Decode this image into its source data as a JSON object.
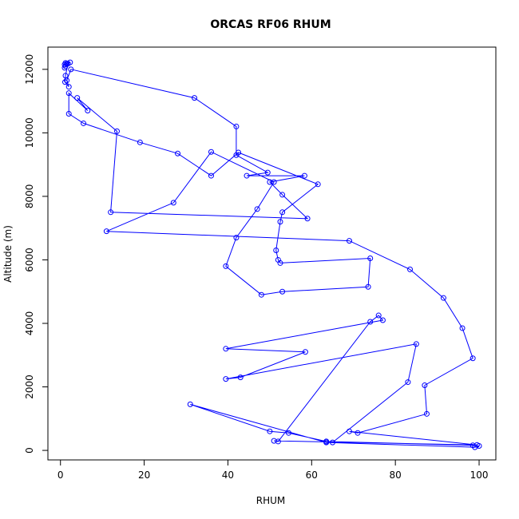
{
  "chart_data": {
    "type": "line",
    "title": "ORCAS RF06 RHUM",
    "xlabel": "RHUM",
    "ylabel": "Altitude (m)",
    "xlim": [
      -3,
      104
    ],
    "ylim": [
      -300,
      12700
    ],
    "xticks": [
      0,
      20,
      40,
      60,
      80,
      100
    ],
    "yticks": [
      0,
      2000,
      4000,
      6000,
      8000,
      10000,
      12000
    ],
    "grid": false,
    "markers": "open-circle",
    "colors": {
      "series": "#0000ff",
      "axis": "#000000"
    },
    "series": [
      {
        "x": [
          1.0,
          1.2,
          1.0,
          1.5,
          1.2,
          2.3,
          1.8,
          1.2,
          1.1,
          2.0,
          1.5,
          2.5,
          32.0,
          42.0,
          42.0,
          49.5,
          44.5,
          58.3,
          50.0,
          53.0,
          59.0,
          12.0,
          13.5,
          4.0,
          6.5,
          2.0,
          2.0,
          5.5,
          19.0,
          28.0,
          36.0,
          42.5,
          61.5,
          53.0,
          52.5,
          51.5,
          52.0,
          52.5,
          74.0,
          73.5,
          53.0,
          48.0,
          39.5,
          42.0,
          47.0,
          51.0,
          36.0,
          27.0,
          11.0,
          69.0,
          83.5,
          91.5,
          96.0,
          98.5,
          87.0,
          87.5,
          71.0,
          69.0,
          99.5,
          51.0,
          52.0,
          74.0,
          76.0,
          77.0,
          39.5,
          58.5,
          43.0,
          39.5,
          85.0,
          83.0,
          65.0,
          63.5,
          54.5,
          50.0,
          31.0,
          63.5,
          99.0,
          100.0,
          98.5,
          63.5
        ],
        "y": [
          12050,
          12100,
          12150,
          12180,
          12200,
          12220,
          12180,
          11800,
          11600,
          11450,
          11650,
          12000,
          11100,
          10200,
          9300,
          8750,
          8650,
          8650,
          8450,
          8050,
          7300,
          7500,
          10050,
          11100,
          10700,
          11250,
          10600,
          10300,
          9700,
          9350,
          8650,
          9380,
          8380,
          7500,
          7200,
          6300,
          6000,
          5900,
          6050,
          5150,
          5000,
          4900,
          5800,
          6700,
          7600,
          8450,
          9400,
          7800,
          6900,
          6600,
          5700,
          4800,
          3850,
          2900,
          2050,
          1150,
          550,
          600,
          170,
          300,
          280,
          4050,
          4250,
          4100,
          3200,
          3100,
          2300,
          2250,
          3350,
          2150,
          250,
          280,
          550,
          600,
          1450,
          250,
          100,
          140,
          160,
          280
        ]
      }
    ]
  }
}
